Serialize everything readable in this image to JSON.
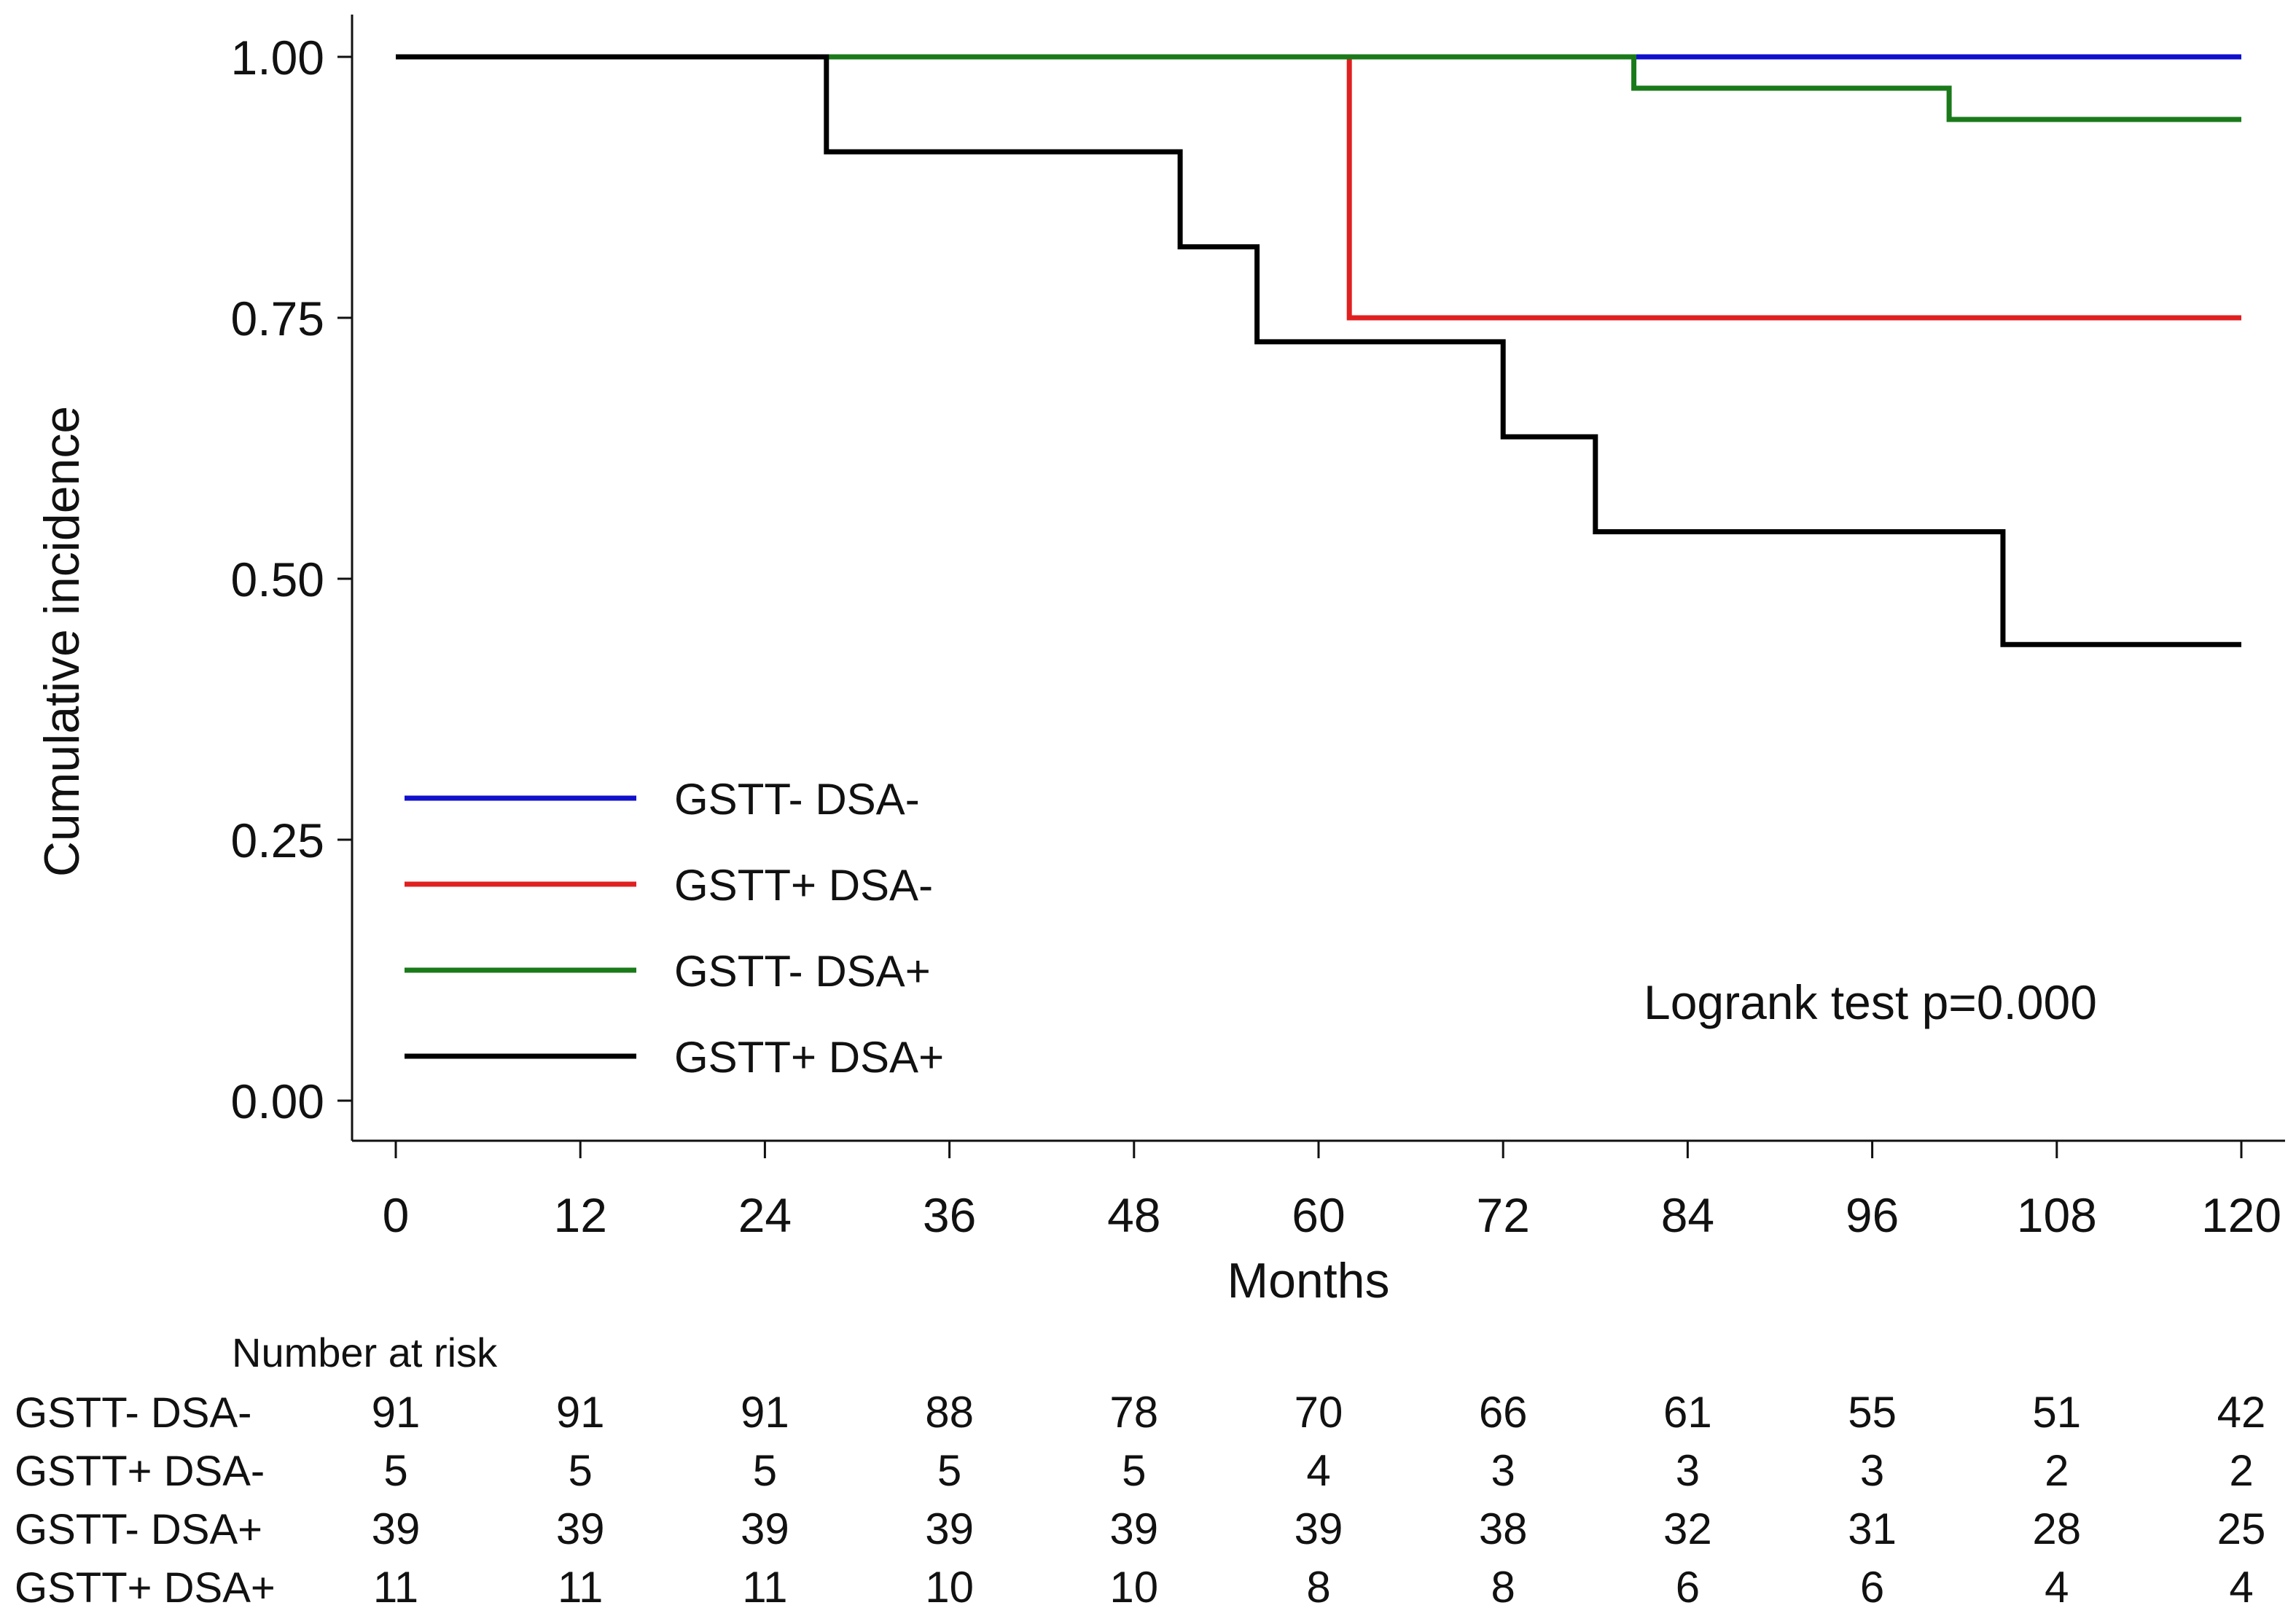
{
  "chart_data": {
    "type": "line",
    "subtype": "kaplan-meier-step",
    "ylabel": "Cumulative incidence",
    "xlabel": "Months",
    "xlim": [
      0,
      120
    ],
    "ylim": [
      0,
      1
    ],
    "x_ticks": [
      0,
      12,
      24,
      36,
      48,
      60,
      72,
      84,
      96,
      108,
      120
    ],
    "y_ticks": [
      "0.00",
      "0.25",
      "0.50",
      "0.75",
      "1.00"
    ],
    "grid": false,
    "legend_position": "bottom-left",
    "annotation": "Logrank test p=0.000",
    "series": [
      {
        "name": "GSTT- DSA-",
        "color": "#1010cc",
        "steps": [
          [
            0,
            1.0
          ],
          [
            120,
            1.0
          ]
        ]
      },
      {
        "name": "GSTT+ DSA-",
        "color": "#e02020",
        "steps": [
          [
            0,
            1.0
          ],
          [
            62,
            0.75
          ],
          [
            120,
            0.75
          ]
        ]
      },
      {
        "name": "GSTT- DSA+",
        "color": "#1a7a1a",
        "steps": [
          [
            0,
            1.0
          ],
          [
            80.5,
            0.97
          ],
          [
            101,
            0.94
          ],
          [
            120,
            0.94
          ]
        ]
      },
      {
        "name": "GSTT+ DSA+",
        "color": "#000000",
        "steps": [
          [
            0,
            1.0
          ],
          [
            28,
            0.909
          ],
          [
            51,
            0.818
          ],
          [
            56,
            0.727
          ],
          [
            72,
            0.636
          ],
          [
            78,
            0.545
          ],
          [
            104.5,
            0.437
          ],
          [
            120,
            0.437
          ]
        ]
      }
    ],
    "risk_table": {
      "title": "Number at risk",
      "rows": [
        {
          "label": "GSTT- DSA-",
          "values": [
            91,
            91,
            91,
            88,
            78,
            70,
            66,
            61,
            55,
            51,
            42
          ]
        },
        {
          "label": "GSTT+ DSA-",
          "values": [
            5,
            5,
            5,
            5,
            5,
            4,
            3,
            3,
            3,
            2,
            2
          ]
        },
        {
          "label": "GSTT- DSA+",
          "values": [
            39,
            39,
            39,
            39,
            39,
            39,
            38,
            32,
            31,
            28,
            25
          ]
        },
        {
          "label": "GSTT+ DSA+",
          "values": [
            11,
            11,
            11,
            10,
            10,
            8,
            8,
            6,
            6,
            4,
            4
          ]
        }
      ]
    }
  }
}
